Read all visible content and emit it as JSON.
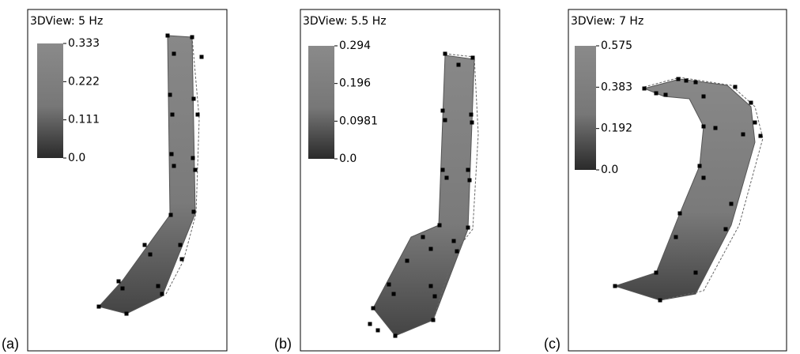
{
  "panels": [
    {
      "label": "(a)",
      "title": "3DView: 5 Hz",
      "scale": [
        "0.333",
        "0.222",
        "0.111",
        "0.0"
      ]
    },
    {
      "label": "(b)",
      "title": "3DView: 5.5 Hz",
      "scale": [
        "0.294",
        "0.196",
        "0.0981",
        "0.0"
      ]
    },
    {
      "label": "(c)",
      "title": "3DView: 7 Hz",
      "scale": [
        "0.575",
        "0.383",
        "0.192",
        "0.0"
      ]
    }
  ]
}
